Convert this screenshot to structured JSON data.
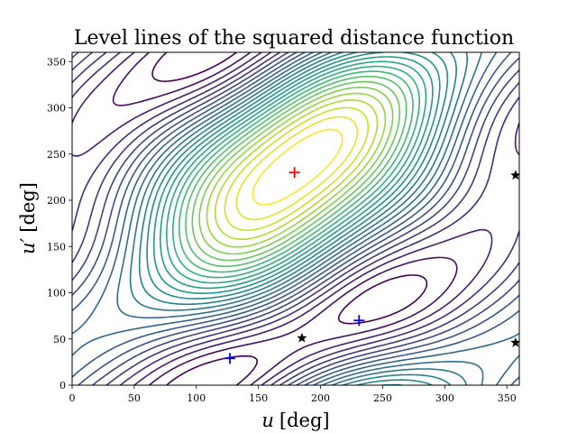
{
  "chart_data": {
    "type": "contour",
    "title": "Level lines of the squared distance function",
    "xlabel": {
      "var": "u",
      "unit": "[deg]"
    },
    "ylabel": {
      "var": "u′",
      "unit": "[deg]"
    },
    "xlim": [
      0,
      360
    ],
    "ylim": [
      0,
      360
    ],
    "xticks": [
      0,
      50,
      100,
      150,
      200,
      250,
      300,
      350
    ],
    "yticks": [
      0,
      50,
      100,
      150,
      200,
      250,
      300,
      350
    ],
    "grid": false,
    "colormap": "viridis",
    "maximum": {
      "x": 179,
      "y": 230,
      "marker": "+",
      "color": "#ff0000"
    },
    "minima": [
      {
        "x": 127,
        "y": 29,
        "marker": "+",
        "color": "#0000ff"
      },
      {
        "x": 231,
        "y": 70,
        "marker": "+",
        "color": "#0000ff"
      }
    ],
    "saddles": [
      {
        "x": 185,
        "y": 51,
        "marker": "star",
        "color": "#000000"
      },
      {
        "x": 357,
        "y": 227,
        "marker": "star",
        "color": "#000000"
      },
      {
        "x": 357,
        "y": 46,
        "marker": "star",
        "color": "#000000"
      }
    ]
  }
}
